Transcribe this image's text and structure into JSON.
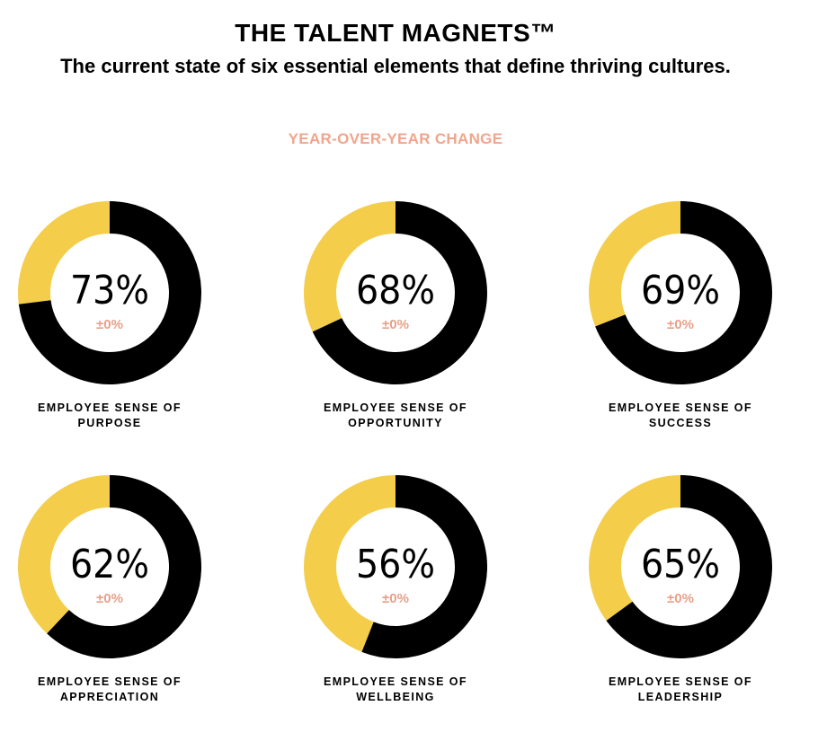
{
  "header": {
    "title": "THE TALENT MAGNETS™",
    "subtitle": "The current state of six essential elements that define thriving cultures.",
    "section_label": "YEAR-OVER-YEAR CHANGE"
  },
  "colors": {
    "filled": "#000000",
    "remainder": "#f4cd4b",
    "change_text": "#e8a089",
    "section_label": "#f0a58c",
    "text": "#000000"
  },
  "chart_data": {
    "type": "pie",
    "variant": "donut",
    "title": "THE TALENT MAGNETS™",
    "subtitle": "The current state of six essential elements that define thriving cultures.",
    "items": [
      {
        "value": 73,
        "value_label": "73%",
        "change": "±0%",
        "label_line1": "EMPLOYEE SENSE OF",
        "label_line2": "PURPOSE"
      },
      {
        "value": 68,
        "value_label": "68%",
        "change": "±0%",
        "label_line1": "EMPLOYEE SENSE OF",
        "label_line2": "OPPORTUNITY"
      },
      {
        "value": 69,
        "value_label": "69%",
        "change": "±0%",
        "label_line1": "EMPLOYEE SENSE OF",
        "label_line2": "SUCCESS"
      },
      {
        "value": 62,
        "value_label": "62%",
        "change": "±0%",
        "label_line1": "EMPLOYEE SENSE OF",
        "label_line2": "APPRECIATION"
      },
      {
        "value": 56,
        "value_label": "56%",
        "change": "±0%",
        "label_line1": "EMPLOYEE SENSE OF",
        "label_line2": "WELLBEING"
      },
      {
        "value": 65,
        "value_label": "65%",
        "change": "±0%",
        "label_line1": "EMPLOYEE SENSE OF",
        "label_line2": "LEADERSHIP"
      }
    ]
  }
}
